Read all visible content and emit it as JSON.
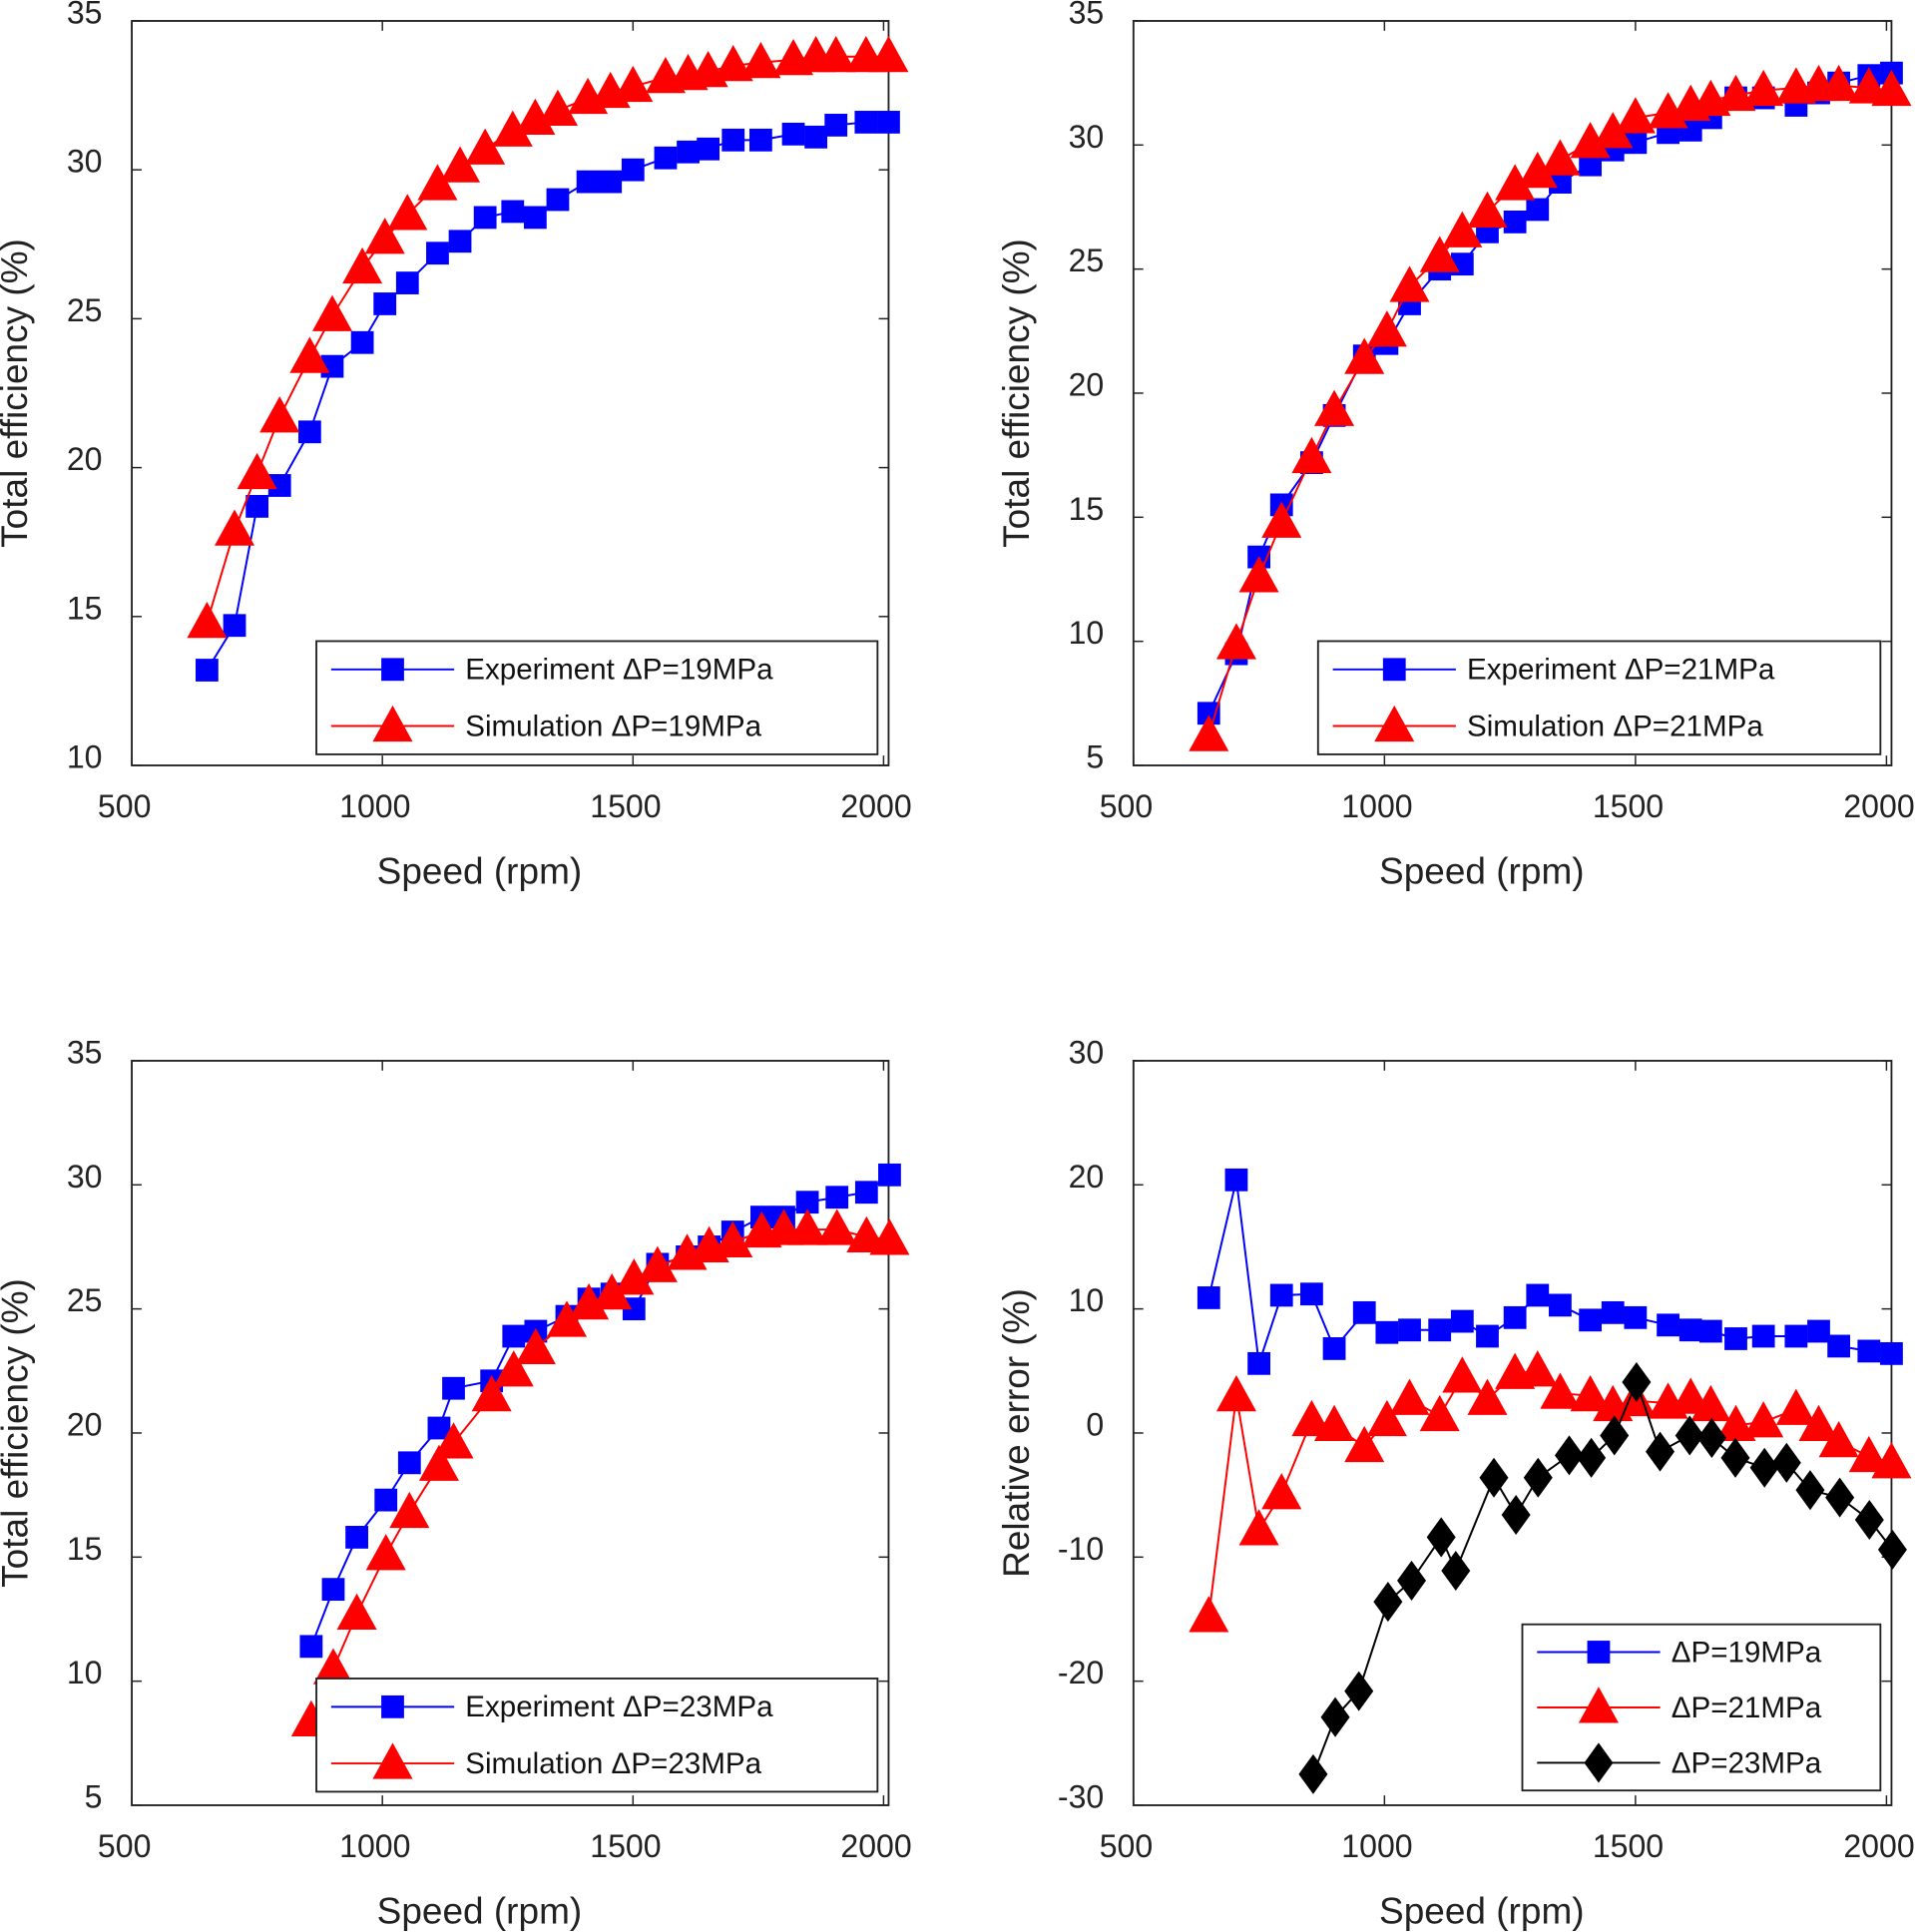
{
  "colors": {
    "blue": "#0000ff",
    "red": "#ff0000",
    "black": "#000000"
  },
  "chart_data": [
    {
      "type": "line",
      "xlabel": "Speed (rpm)",
      "ylabel": "Total efficiency (%)",
      "xlim": [
        500,
        2010
      ],
      "ylim": [
        10,
        35
      ],
      "xticks": [
        500,
        1000,
        1500,
        2000
      ],
      "yticks": [
        10,
        15,
        20,
        25,
        30,
        35
      ],
      "legend_position": "bottom-right",
      "series": [
        {
          "name": "Experiment ΔP=19MPa",
          "color": "blue",
          "marker": "square",
          "x": [
            650,
            705,
            750,
            795,
            855,
            900,
            960,
            1005,
            1050,
            1110,
            1155,
            1205,
            1260,
            1305,
            1350,
            1410,
            1455,
            1500,
            1565,
            1610,
            1650,
            1700,
            1755,
            1820,
            1865,
            1905,
            1965,
            2010
          ],
          "y": [
            13.2,
            14.7,
            18.7,
            19.4,
            21.2,
            23.4,
            24.2,
            25.5,
            26.2,
            27.2,
            27.6,
            28.4,
            28.6,
            28.4,
            29.0,
            29.6,
            29.6,
            30.0,
            30.4,
            30.6,
            30.7,
            31.0,
            31.0,
            31.2,
            31.1,
            31.5,
            31.6,
            31.6
          ]
        },
        {
          "name": "Simulation ΔP=19MPa",
          "color": "red",
          "marker": "triangle",
          "x": [
            650,
            705,
            750,
            795,
            855,
            900,
            960,
            1005,
            1050,
            1110,
            1155,
            1205,
            1260,
            1305,
            1350,
            1410,
            1455,
            1500,
            1565,
            1610,
            1650,
            1700,
            1755,
            1820,
            1865,
            1905,
            1965,
            2010
          ],
          "y": [
            14.8,
            17.9,
            19.8,
            21.7,
            23.7,
            25.1,
            26.7,
            27.7,
            28.5,
            29.5,
            30.1,
            30.7,
            31.3,
            31.7,
            32.0,
            32.4,
            32.6,
            32.8,
            33.1,
            33.2,
            33.3,
            33.5,
            33.6,
            33.7,
            33.8,
            33.8,
            33.8,
            33.8
          ]
        }
      ]
    },
    {
      "type": "line",
      "xlabel": "Speed (rpm)",
      "ylabel": "Total efficiency (%)",
      "xlim": [
        500,
        2010
      ],
      "ylim": [
        5,
        35
      ],
      "xticks": [
        500,
        1000,
        1500,
        2000
      ],
      "yticks": [
        5,
        10,
        15,
        20,
        25,
        30,
        35
      ],
      "legend_position": "bottom-right",
      "series": [
        {
          "name": "Experiment ΔP=21MPa",
          "color": "blue",
          "marker": "square",
          "x": [
            650,
            705,
            750,
            795,
            855,
            900,
            960,
            1005,
            1050,
            1110,
            1155,
            1205,
            1260,
            1305,
            1350,
            1410,
            1455,
            1500,
            1565,
            1610,
            1650,
            1700,
            1755,
            1820,
            1865,
            1905,
            1965,
            2010
          ],
          "y": [
            7.1,
            9.5,
            13.4,
            15.5,
            17.2,
            19.1,
            21.5,
            22.0,
            23.6,
            25.0,
            25.2,
            26.5,
            26.9,
            27.4,
            28.5,
            29.2,
            29.8,
            30.1,
            30.5,
            30.6,
            31.1,
            31.9,
            31.9,
            31.6,
            32.1,
            32.5,
            32.8,
            32.9
          ]
        },
        {
          "name": "Simulation ΔP=21MPa",
          "color": "red",
          "marker": "triangle",
          "x": [
            650,
            705,
            750,
            795,
            855,
            900,
            960,
            1005,
            1050,
            1110,
            1155,
            1205,
            1260,
            1305,
            1350,
            1410,
            1455,
            1500,
            1565,
            1610,
            1650,
            1700,
            1755,
            1820,
            1865,
            1905,
            1965,
            2010
          ],
          "y": [
            6.2,
            9.9,
            12.6,
            14.8,
            17.4,
            19.3,
            21.4,
            22.5,
            24.3,
            25.5,
            26.5,
            27.3,
            28.4,
            28.9,
            29.4,
            30.1,
            30.5,
            31.1,
            31.3,
            31.6,
            31.8,
            32.0,
            32.2,
            32.3,
            32.4,
            32.4,
            32.3,
            32.2
          ]
        }
      ]
    },
    {
      "type": "line",
      "xlabel": "Speed (rpm)",
      "ylabel": "Total efficiency (%)",
      "xlim": [
        500,
        2010
      ],
      "ylim": [
        5,
        35
      ],
      "xticks": [
        500,
        1000,
        1500,
        2000
      ],
      "yticks": [
        5,
        10,
        15,
        20,
        25,
        30,
        35
      ],
      "legend_position": "bottom-right",
      "series": [
        {
          "name": "Experiment ΔP=23MPa",
          "color": "blue",
          "marker": "square",
          "x": [
            858,
            902,
            949,
            1007,
            1054,
            1113,
            1142,
            1218,
            1262,
            1306,
            1368,
            1412,
            1458,
            1502,
            1549,
            1608,
            1652,
            1699,
            1757,
            1801,
            1848,
            1907,
            1966,
            2012
          ],
          "y": [
            11.4,
            13.7,
            15.8,
            17.3,
            18.8,
            20.2,
            21.8,
            22.1,
            23.9,
            24.1,
            24.7,
            25.4,
            25.6,
            25.0,
            26.8,
            27.1,
            27.5,
            28.1,
            28.7,
            28.7,
            29.3,
            29.5,
            29.7,
            30.4
          ]
        },
        {
          "name": "Simulation ΔP=23MPa",
          "color": "red",
          "marker": "triangle",
          "x": [
            858,
            902,
            949,
            1007,
            1054,
            1113,
            1142,
            1218,
            1262,
            1306,
            1368,
            1412,
            1458,
            1502,
            1549,
            1608,
            1652,
            1699,
            1757,
            1801,
            1848,
            1907,
            1966,
            2012
          ],
          "y": [
            8.4,
            10.5,
            12.7,
            15.1,
            16.8,
            18.7,
            19.6,
            21.5,
            22.5,
            23.4,
            24.5,
            25.2,
            25.6,
            26.2,
            26.7,
            27.2,
            27.5,
            27.7,
            28.1,
            28.2,
            28.2,
            28.2,
            27.9,
            27.8
          ]
        }
      ]
    },
    {
      "type": "line",
      "xlabel": "Speed (rpm)",
      "ylabel": "Relative error (%)",
      "xlim": [
        500,
        2010
      ],
      "ylim": [
        -30,
        30
      ],
      "xticks": [
        500,
        1000,
        1500,
        2000
      ],
      "yticks": [
        -30,
        -20,
        -10,
        0,
        10,
        20,
        30
      ],
      "legend_position": "bottom-right",
      "series": [
        {
          "name": "ΔP=19MPa",
          "color": "blue",
          "marker": "square",
          "x": [
            650,
            705,
            750,
            795,
            855,
            900,
            960,
            1005,
            1050,
            1110,
            1155,
            1205,
            1260,
            1305,
            1350,
            1410,
            1455,
            1500,
            1565,
            1610,
            1650,
            1700,
            1755,
            1820,
            1865,
            1905,
            1965,
            2010
          ],
          "y": [
            10.9,
            20.4,
            5.6,
            11.1,
            11.2,
            6.8,
            9.7,
            8.1,
            8.3,
            8.3,
            9.0,
            7.8,
            9.3,
            11.1,
            10.3,
            9.1,
            9.7,
            9.3,
            8.7,
            8.3,
            8.2,
            7.6,
            7.8,
            7.8,
            8.2,
            7.0,
            6.6,
            6.4
          ]
        },
        {
          "name": "ΔP=21MPa",
          "color": "red",
          "marker": "triangle",
          "x": [
            650,
            705,
            750,
            795,
            855,
            900,
            960,
            1005,
            1050,
            1110,
            1155,
            1205,
            1260,
            1305,
            1350,
            1410,
            1455,
            1500,
            1565,
            1610,
            1650,
            1700,
            1755,
            1820,
            1865,
            1905,
            1965,
            2010
          ],
          "y": [
            -14.8,
            3.0,
            -7.8,
            -4.9,
            1.0,
            0.6,
            -1.1,
            1.0,
            2.7,
            1.4,
            4.5,
            2.7,
            4.8,
            5.0,
            3.2,
            3.0,
            2.2,
            2.6,
            2.4,
            2.8,
            2.2,
            0.6,
            0.9,
            1.9,
            0.6,
            -0.7,
            -1.9,
            -2.4
          ]
        },
        {
          "name": "ΔP=23MPa",
          "color": "black",
          "marker": "diamond",
          "x": [
            858,
            902,
            949,
            1007,
            1054,
            1113,
            1142,
            1218,
            1262,
            1306,
            1368,
            1412,
            1458,
            1502,
            1549,
            1608,
            1652,
            1699,
            1757,
            1801,
            1848,
            1907,
            1966,
            2012
          ],
          "y": [
            -27.5,
            -22.9,
            -20.8,
            -13.6,
            -11.9,
            -8.4,
            -11.1,
            -3.6,
            -6.6,
            -3.6,
            -1.8,
            -2.0,
            -0.2,
            4.1,
            -1.5,
            -0.2,
            -0.4,
            -2.0,
            -2.8,
            -2.4,
            -4.6,
            -5.2,
            -7.0,
            -9.4
          ]
        }
      ]
    }
  ]
}
